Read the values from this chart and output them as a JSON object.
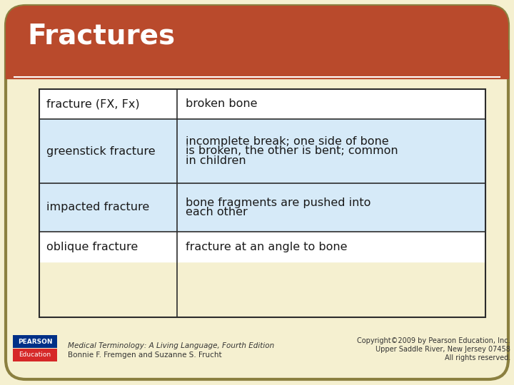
{
  "title": "Fractures",
  "title_bg_color": "#b94a2c",
  "title_text_color": "#ffffff",
  "slide_bg_color": "#f5f0d0",
  "slide_border_color": "#8b8040",
  "table_border_color": "#2c2c2c",
  "table_header_bg": "#ffffff",
  "table_alt_bg": "#d6eaf8",
  "table_white_bg": "#ffffff",
  "rows": [
    {
      "term": "fracture (FX, Fx)",
      "definition": "broken bone",
      "bg": "#ffffff"
    },
    {
      "term": "greenstick fracture",
      "definition": "incomplete break; one side of bone\nis broken, the other is bent; common\nin children",
      "bg": "#d6eaf8"
    },
    {
      "term": "impacted fracture",
      "definition": "bone fragments are pushed into\neach other",
      "bg": "#d6eaf8"
    },
    {
      "term": "oblique fracture",
      "definition": "fracture at an angle to bone",
      "bg": "#ffffff"
    }
  ],
  "footer_left_line1": "Medical Terminology: A Living Language, Fourth Edition",
  "footer_left_line2": "Bonnie F. Fremgen and Suzanne S. Frucht",
  "footer_right_line1": "Copyright©2009 by Pearson Education, Inc.",
  "footer_right_line2": "Upper Saddle River, New Jersey 07458",
  "footer_right_line3": "All rights reserved.",
  "footer_text_color": "#333333",
  "table_text_color": "#1a1a1a"
}
